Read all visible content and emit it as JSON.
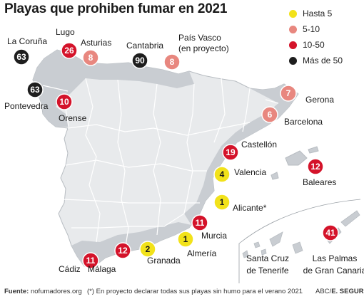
{
  "title": "Playas que prohiben fumar en 2021",
  "legend": [
    {
      "label": "Hasta 5",
      "color": "#f2e21a"
    },
    {
      "label": "5-10",
      "color": "#e8877f"
    },
    {
      "label": "10-50",
      "color": "#d4132a"
    },
    {
      "label": "Más de 50",
      "color": "#1e1e1e"
    }
  ],
  "markers": [
    {
      "value": "63",
      "category": 3
    },
    {
      "value": "26",
      "category": 2
    },
    {
      "value": "8",
      "category": 1
    },
    {
      "value": "90",
      "category": 3
    },
    {
      "value": "8",
      "category": 1
    },
    {
      "value": "63",
      "category": 3
    },
    {
      "value": "10",
      "category": 2
    },
    {
      "value": "7",
      "category": 1
    },
    {
      "value": "6",
      "category": 1
    },
    {
      "value": "19",
      "category": 2
    },
    {
      "value": "12",
      "category": 2
    },
    {
      "value": "4",
      "category": 0
    },
    {
      "value": "1",
      "category": 0
    },
    {
      "value": "11",
      "category": 2
    },
    {
      "value": "1",
      "category": 0
    },
    {
      "value": "2",
      "category": 0
    },
    {
      "value": "12",
      "category": 2
    },
    {
      "value": "11",
      "category": 2
    },
    {
      "value": "41",
      "category": 2
    }
  ],
  "places": [
    "La Coruña",
    "Lugo",
    "Asturias",
    "Cantabria",
    "País Vasco",
    "(en proyecto)",
    "Pontevedra",
    "Orense",
    "Gerona",
    "Barcelona",
    "Castellón",
    "Valencia",
    "Baleares",
    "Alicante*",
    "Murcia",
    "Almería",
    "Granada",
    "Málaga",
    "Cádiz",
    "Santa Cruz",
    "de Tenerife",
    "Las Palmas",
    "de Gran Canaria"
  ],
  "footer": {
    "source_label": "Fuente:",
    "source": "nofumadores.org",
    "note": "(*) En proyecto declarar todas sus playas sin humo para el verano 2021",
    "credit_prefix": "ABC/",
    "credit": "E. SEGURA"
  }
}
